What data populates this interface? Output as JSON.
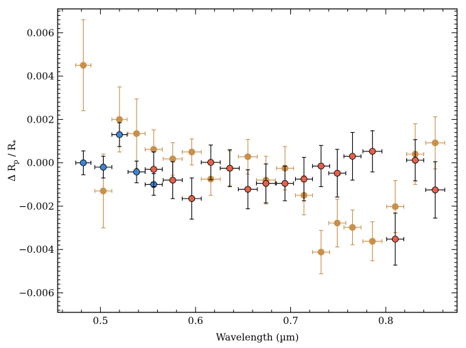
{
  "chart_data": {
    "type": "scatter",
    "title": "",
    "xlabel": "Wavelength (µm)",
    "ylabel_parts": {
      "pre": "Δ R",
      "sub1": "p",
      "mid": " / R",
      "sub2": "*"
    },
    "xlim": [
      0.455,
      0.875
    ],
    "ylim": [
      -0.0069,
      0.0071
    ],
    "x_ticks": [
      0.5,
      0.6,
      0.7,
      0.8
    ],
    "x_tick_labels": [
      "0.5",
      "0.6",
      "0.7",
      "0.8"
    ],
    "y_ticks": [
      -0.006,
      -0.004,
      -0.002,
      0.0,
      0.002,
      0.004,
      0.006
    ],
    "y_tick_labels": [
      "−0.006",
      "−0.004",
      "−0.002",
      "0.000",
      "0.002",
      "0.004",
      "0.006"
    ],
    "grid": false,
    "legend": "none",
    "series": [
      {
        "color": "#C8904A",
        "edge": "#C8904A",
        "errcolor": "#C8904A",
        "points": [
          {
            "x": 0.482,
            "y": 0.0045,
            "xerr": 0.008,
            "yerr": 0.0021
          },
          {
            "x": 0.503,
            "y": -0.0013,
            "xerr": 0.009,
            "yerr": 0.0017
          },
          {
            "x": 0.52,
            "y": 0.002,
            "xerr": 0.008,
            "yerr": 0.0015
          },
          {
            "x": 0.538,
            "y": 0.00135,
            "xerr": 0.009,
            "yerr": 0.0016
          },
          {
            "x": 0.556,
            "y": 0.00062,
            "xerr": 0.009,
            "yerr": 0.0009
          },
          {
            "x": 0.576,
            "y": 0.00018,
            "xerr": 0.01,
            "yerr": 0.00075
          },
          {
            "x": 0.596,
            "y": 0.0005,
            "xerr": 0.01,
            "yerr": 0.0006
          },
          {
            "x": 0.616,
            "y": -0.00075,
            "xerr": 0.01,
            "yerr": 0.00075
          },
          {
            "x": 0.636,
            "y": -0.00025,
            "xerr": 0.01,
            "yerr": 0.0008
          },
          {
            "x": 0.655,
            "y": 0.00028,
            "xerr": 0.01,
            "yerr": 0.0008
          },
          {
            "x": 0.674,
            "y": -0.0008,
            "xerr": 0.01,
            "yerr": 0.0011
          },
          {
            "x": 0.694,
            "y": -0.00025,
            "xerr": 0.009,
            "yerr": 0.001
          },
          {
            "x": 0.714,
            "y": -0.0015,
            "xerr": 0.009,
            "yerr": 0.0009
          },
          {
            "x": 0.732,
            "y": -0.00412,
            "xerr": 0.009,
            "yerr": 0.001
          },
          {
            "x": 0.749,
            "y": -0.00278,
            "xerr": 0.009,
            "yerr": 0.0011
          },
          {
            "x": 0.765,
            "y": -0.00298,
            "xerr": 0.009,
            "yerr": 0.0008
          },
          {
            "x": 0.786,
            "y": -0.00362,
            "xerr": 0.01,
            "yerr": 0.0009
          },
          {
            "x": 0.81,
            "y": -0.00202,
            "xerr": 0.009,
            "yerr": 0.0012
          },
          {
            "x": 0.831,
            "y": 0.0004,
            "xerr": 0.009,
            "yerr": 0.0014
          },
          {
            "x": 0.852,
            "y": 0.00092,
            "xerr": 0.01,
            "yerr": 0.0012
          }
        ]
      },
      {
        "color": "#3B86D6",
        "edge": "#000000",
        "errcolor": "#000000",
        "points": [
          {
            "x": 0.482,
            "y": 0.0,
            "xerr": 0.008,
            "yerr": 0.00055
          },
          {
            "x": 0.503,
            "y": -0.0002,
            "xerr": 0.009,
            "yerr": 0.0005
          },
          {
            "x": 0.52,
            "y": 0.0013,
            "xerr": 0.008,
            "yerr": 0.00055
          },
          {
            "x": 0.538,
            "y": -0.00042,
            "xerr": 0.009,
            "yerr": 0.0005
          },
          {
            "x": 0.556,
            "y": -0.001,
            "xerr": 0.009,
            "yerr": 0.0005
          }
        ]
      },
      {
        "color": "#E8604A",
        "edge": "#000000",
        "errcolor": "#000000",
        "points": [
          {
            "x": 0.556,
            "y": -0.0003,
            "xerr": 0.009,
            "yerr": 0.0008
          },
          {
            "x": 0.576,
            "y": -0.0008,
            "xerr": 0.01,
            "yerr": 0.00085
          },
          {
            "x": 0.596,
            "y": -0.00165,
            "xerr": 0.01,
            "yerr": 0.00095
          },
          {
            "x": 0.616,
            "y": 2e-05,
            "xerr": 0.01,
            "yerr": 0.0008
          },
          {
            "x": 0.636,
            "y": -0.00025,
            "xerr": 0.01,
            "yerr": 0.00085
          },
          {
            "x": 0.655,
            "y": -0.00122,
            "xerr": 0.01,
            "yerr": 0.0009
          },
          {
            "x": 0.674,
            "y": -0.00095,
            "xerr": 0.01,
            "yerr": 0.0009
          },
          {
            "x": 0.694,
            "y": -0.00095,
            "xerr": 0.009,
            "yerr": 0.0008
          },
          {
            "x": 0.714,
            "y": -0.00075,
            "xerr": 0.009,
            "yerr": 0.001
          },
          {
            "x": 0.732,
            "y": -0.00015,
            "xerr": 0.009,
            "yerr": 0.00095
          },
          {
            "x": 0.749,
            "y": -0.00048,
            "xerr": 0.009,
            "yerr": 0.0011
          },
          {
            "x": 0.765,
            "y": 0.0003,
            "xerr": 0.009,
            "yerr": 0.0011
          },
          {
            "x": 0.786,
            "y": 0.00053,
            "xerr": 0.01,
            "yerr": 0.00095
          },
          {
            "x": 0.81,
            "y": -0.00352,
            "xerr": 0.009,
            "yerr": 0.0012
          },
          {
            "x": 0.831,
            "y": 0.00012,
            "xerr": 0.009,
            "yerr": 0.00095
          },
          {
            "x": 0.852,
            "y": -0.00125,
            "xerr": 0.01,
            "yerr": 0.0013
          }
        ]
      }
    ]
  }
}
